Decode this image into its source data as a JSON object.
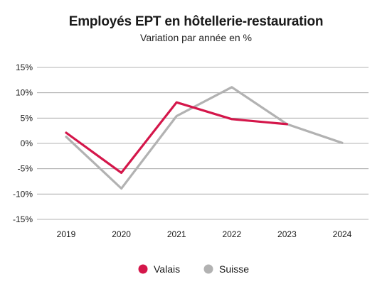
{
  "chart_data": {
    "type": "line",
    "title": "Employés EPT en hôtellerie-restauration",
    "subtitle": "Variation par année en %",
    "xlabel": "",
    "ylabel": "",
    "categories": [
      "2019",
      "2020",
      "2021",
      "2022",
      "2023",
      "2024"
    ],
    "ylim": [
      -15,
      15
    ],
    "yticks": [
      15,
      10,
      5,
      0,
      -5,
      -10,
      -15
    ],
    "ytick_labels": [
      "15%",
      "10%",
      "5%",
      "0%",
      "-5%",
      "-10%",
      "-15%"
    ],
    "grid": true,
    "legend_position": "bottom",
    "series": [
      {
        "name": "Suisse",
        "color": "#b2b2b2",
        "values": [
          1.3,
          -8.9,
          5.4,
          11.1,
          3.8,
          0.1
        ]
      },
      {
        "name": "Valais",
        "color": "#d4164a",
        "values": [
          2.1,
          -5.8,
          8.1,
          4.8,
          3.8,
          null
        ]
      }
    ],
    "legend": [
      {
        "name": "Valais",
        "color": "#d4164a"
      },
      {
        "name": "Suisse",
        "color": "#b2b2b2"
      }
    ]
  }
}
